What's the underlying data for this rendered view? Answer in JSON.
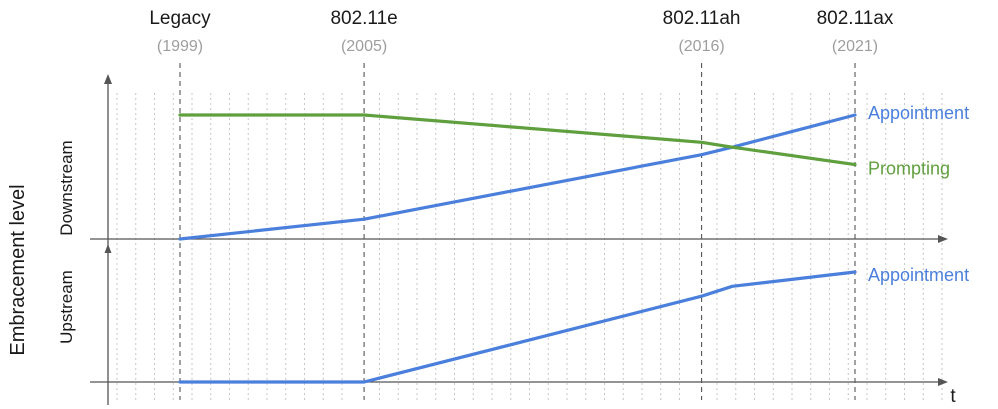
{
  "chart_data": {
    "type": "line",
    "ylabel": "Embracement level",
    "xlabel": "t",
    "milestones": [
      {
        "name": "Legacy",
        "year": "(1999)"
      },
      {
        "name": "802.11e",
        "year": "(2005)"
      },
      {
        "name": "802.11ah",
        "year": "(2016)"
      },
      {
        "name": "802.11ax",
        "year": "(2021)"
      }
    ],
    "x_ticks": [
      1999,
      2005,
      2016,
      2021
    ],
    "xlim": [
      1997,
      2024.3
    ],
    "grid": true,
    "panels": [
      {
        "label": "Downstream",
        "ylim": [
          0,
          1
        ],
        "series": [
          {
            "name": "Appointment",
            "color": "#4a7fdc",
            "points": [
              [
                1999,
                0.0
              ],
              [
                2005,
                0.16
              ],
              [
                2016,
                0.68
              ],
              [
                2017,
                0.74
              ],
              [
                2021,
                1.0
              ]
            ]
          },
          {
            "name": "Prompting",
            "color": "#5f9f3e",
            "points": [
              [
                1999,
                1.0
              ],
              [
                2005,
                1.0
              ],
              [
                2016,
                0.78
              ],
              [
                2017,
                0.74
              ],
              [
                2021,
                0.6
              ]
            ]
          }
        ]
      },
      {
        "label": "Upstream",
        "ylim": [
          0,
          1
        ],
        "series": [
          {
            "name": "Appointment",
            "color": "#4a7fdc",
            "points": [
              [
                1999,
                0.0
              ],
              [
                2005,
                0.0
              ],
              [
                2016,
                0.78
              ],
              [
                2017,
                0.87
              ],
              [
                2021,
                1.0
              ]
            ]
          }
        ]
      }
    ]
  }
}
